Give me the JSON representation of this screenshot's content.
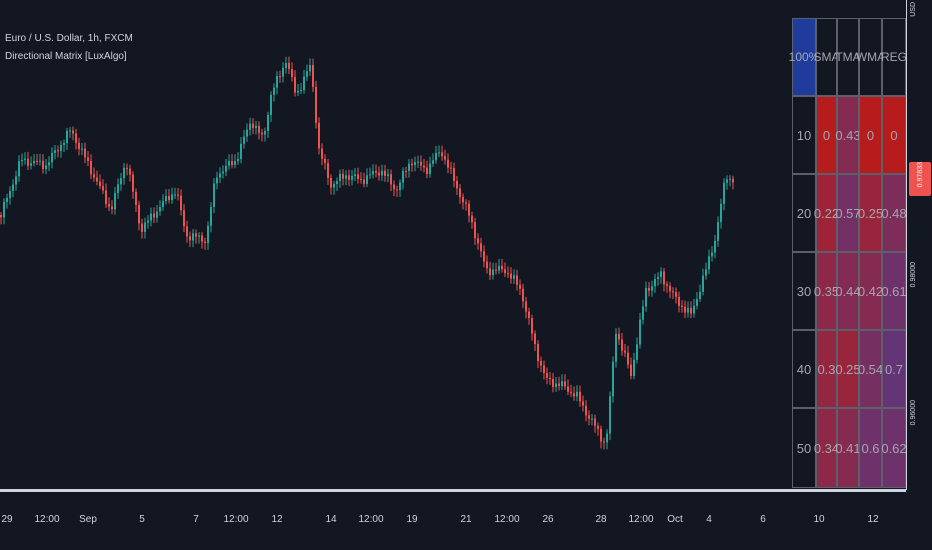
{
  "chart": {
    "symbol": "Euro / U.S. Dollar, 1h, FXCM",
    "indicator": "Directional Matrix [LuxAlgo]",
    "currency": "USD",
    "last_price": "0.97833",
    "countdown": "45:38",
    "price_levels": [
      "0.98000",
      "0.96000"
    ],
    "up_color": "#26a69a",
    "down_color": "#ef5350"
  },
  "time_axis": {
    "ticks": [
      "29",
      "12:00",
      "Sep",
      "5",
      "7",
      "12:00",
      "12",
      "14",
      "12:00",
      "19",
      "21",
      "12:00",
      "26",
      "28",
      "12:00",
      "Oct",
      "4",
      "6",
      "10",
      "12"
    ]
  },
  "matrix": {
    "corner": "100%",
    "columns": [
      "SMA",
      "TMA",
      "WMA",
      "REG"
    ],
    "rows": [
      {
        "length": "10",
        "values": [
          "0",
          "0.43",
          "0",
          "0"
        ]
      },
      {
        "length": "20",
        "values": [
          "0.22",
          "0.57",
          "0.25",
          "0.48"
        ]
      },
      {
        "length": "30",
        "values": [
          "0.35",
          "0.44",
          "0.42",
          "0.61"
        ]
      },
      {
        "length": "40",
        "values": [
          "0.3",
          "0.25",
          "0.54",
          "0.7"
        ]
      },
      {
        "length": "50",
        "values": [
          "0.34",
          "0.41",
          "0.6",
          "0.62"
        ]
      }
    ],
    "low_color": "#b71c1c",
    "high_color": "#3f3f9c",
    "corner_color": "#1f3c9c"
  }
}
